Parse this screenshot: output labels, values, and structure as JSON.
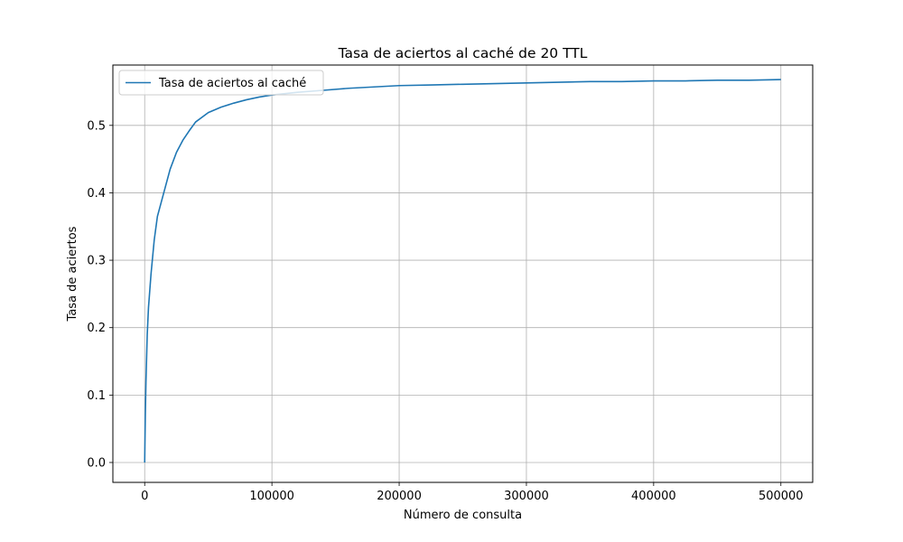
{
  "chart_data": {
    "type": "line",
    "title": "Tasa de aciertos al caché de 20 TTL",
    "xlabel": "Número de consulta",
    "ylabel": "Tasa de aciertos",
    "xlim": [
      -25000,
      525000
    ],
    "ylim": [
      -0.0295,
      0.5895
    ],
    "x_ticks": [
      0,
      100000,
      200000,
      300000,
      400000,
      500000
    ],
    "x_tick_labels": [
      "0",
      "100000",
      "200000",
      "300000",
      "400000",
      "500000"
    ],
    "y_ticks": [
      0.0,
      0.1,
      0.2,
      0.3,
      0.4,
      0.5
    ],
    "y_tick_labels": [
      "0.0",
      "0.1",
      "0.2",
      "0.3",
      "0.4",
      "0.5"
    ],
    "grid": true,
    "legend_position": "upper-left",
    "colors": {
      "series": "#1f77b4",
      "grid": "#b0b0b0",
      "axes": "#000000",
      "legend_border": "#cccccc"
    },
    "series": [
      {
        "name": "Tasa de aciertos al caché",
        "x": [
          0,
          500,
          1000,
          2000,
          3000,
          5000,
          7500,
          10000,
          15000,
          20000,
          25000,
          30000,
          35000,
          40000,
          50000,
          60000,
          70000,
          80000,
          90000,
          100000,
          120000,
          140000,
          160000,
          180000,
          200000,
          225000,
          250000,
          275000,
          300000,
          325000,
          350000,
          375000,
          400000,
          425000,
          450000,
          475000,
          500000
        ],
        "y": [
          0.0,
          0.07,
          0.12,
          0.19,
          0.23,
          0.28,
          0.33,
          0.365,
          0.4,
          0.435,
          0.46,
          0.478,
          0.492,
          0.505,
          0.519,
          0.527,
          0.533,
          0.538,
          0.542,
          0.545,
          0.549,
          0.552,
          0.555,
          0.557,
          0.559,
          0.56,
          0.561,
          0.562,
          0.563,
          0.564,
          0.565,
          0.565,
          0.566,
          0.566,
          0.567,
          0.567,
          0.568
        ]
      }
    ]
  }
}
